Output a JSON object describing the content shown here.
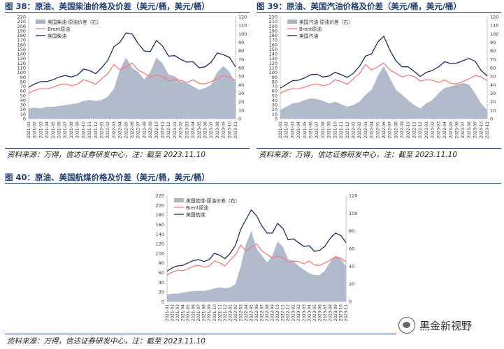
{
  "figures": {
    "fig38": {
      "title": "图 38：原油、美国柴油价格及价差（美元/桶，美元/桶）",
      "source": "资料来源：万得，信达证券研发中心，注：截至 2023.11.10"
    },
    "fig39": {
      "title": "图 39：原油、美国汽油价格及价差（美元/桶，美元/桶）",
      "source": "资料来源：万得，信达证券研发中心，注：截至 2023.11.10"
    },
    "fig40": {
      "title": "图 40：原油、美国航煤价格及价差（美元/桶，美元/桶）",
      "source": "资料来源：万得，信达证券研发中心，注：截至 2023.11.10"
    }
  },
  "watermark": {
    "text": "黑金新视野",
    "icon": "wechat-icon"
  },
  "colors": {
    "spread": "#a9b4c7",
    "brent": "#f47c7c",
    "product": "#1a2f5f",
    "title": "#1f3d6e"
  },
  "chart_data": [
    {
      "type": "area",
      "id": "fig38",
      "categories": [
        "2021-01",
        "2021-02",
        "2021-03",
        "2021-04",
        "2021-05",
        "2021-06",
        "2021-07",
        "2021-08",
        "2021-09",
        "2021-10",
        "2021-11",
        "2021-12",
        "2022-01",
        "2022-02",
        "2022-03",
        "2022-04",
        "2022-05",
        "2022-06",
        "2022-07",
        "2022-08",
        "2022-09",
        "2022-10",
        "2022-11",
        "2022-12",
        "2023-01",
        "2023-02",
        "2023-03",
        "2023-04",
        "2023-05",
        "2023-06",
        "2023-07",
        "2023-08",
        "2023-09",
        "2023-10",
        "2023-11"
      ],
      "y_left": {
        "min": 0,
        "max": 220,
        "step": 10
      },
      "y_right": {
        "min": 0,
        "max": 120,
        "step": 10
      },
      "legend_position": "top-left",
      "series": [
        {
          "name": "美国柴油-原油价差（右）",
          "axis": "right",
          "kind": "area",
          "values": [
            12,
            13,
            12,
            14,
            14,
            15,
            16,
            17,
            18,
            21,
            22,
            21,
            22,
            26,
            35,
            58,
            72,
            60,
            55,
            46,
            55,
            72,
            65,
            52,
            50,
            44,
            42,
            38,
            34,
            36,
            40,
            55,
            62,
            55,
            42
          ]
        },
        {
          "name": "Brent原油",
          "axis": "left",
          "kind": "line",
          "values": [
            55,
            61,
            65,
            64,
            68,
            73,
            75,
            71,
            74,
            84,
            80,
            74,
            86,
            97,
            117,
            105,
            112,
            120,
            105,
            98,
            90,
            94,
            91,
            81,
            84,
            83,
            78,
            84,
            76,
            75,
            80,
            86,
            93,
            90,
            82
          ]
        },
        {
          "name": "美国柴油",
          "axis": "left",
          "kind": "line",
          "values": [
            68,
            75,
            80,
            80,
            84,
            90,
            93,
            90,
            94,
            107,
            104,
            97,
            110,
            126,
            155,
            165,
            185,
            183,
            162,
            146,
            145,
            169,
            157,
            135,
            136,
            128,
            122,
            123,
            110,
            112,
            122,
            142,
            138,
            132,
            112
          ]
        }
      ]
    },
    {
      "type": "area",
      "id": "fig39",
      "categories": [
        "2021-01",
        "2021-02",
        "2021-03",
        "2021-04",
        "2021-05",
        "2021-06",
        "2021-07",
        "2021-08",
        "2021-09",
        "2021-10",
        "2021-11",
        "2021-12",
        "2022-01",
        "2022-02",
        "2022-03",
        "2022-04",
        "2022-05",
        "2022-06",
        "2022-07",
        "2022-08",
        "2022-09",
        "2022-10",
        "2022-11",
        "2022-12",
        "2023-01",
        "2023-02",
        "2023-03",
        "2023-04",
        "2023-05",
        "2023-06",
        "2023-07",
        "2023-08",
        "2023-09",
        "2023-10",
        "2023-11"
      ],
      "y_left": {
        "min": 0,
        "max": 220,
        "step": 10
      },
      "y_right": {
        "min": 0,
        "max": 120,
        "step": 10
      },
      "legend_position": "top-left",
      "series": [
        {
          "name": "美国汽油-原油价差（右）",
          "axis": "right",
          "kind": "area",
          "values": [
            10,
            14,
            18,
            19,
            22,
            24,
            23,
            21,
            18,
            20,
            17,
            14,
            16,
            20,
            28,
            34,
            50,
            62,
            48,
            34,
            28,
            22,
            16,
            12,
            18,
            22,
            30,
            36,
            38,
            40,
            42,
            40,
            30,
            18,
            10
          ]
        },
        {
          "name": "Brent原油",
          "axis": "left",
          "kind": "line",
          "values": [
            55,
            61,
            65,
            64,
            68,
            73,
            75,
            71,
            74,
            84,
            80,
            74,
            86,
            97,
            117,
            105,
            112,
            120,
            105,
            98,
            90,
            94,
            91,
            81,
            84,
            83,
            78,
            84,
            76,
            75,
            80,
            86,
            93,
            90,
            82
          ]
        },
        {
          "name": "美国汽油",
          "axis": "left",
          "kind": "line",
          "values": [
            66,
            74,
            82,
            83,
            88,
            95,
            96,
            90,
            92,
            100,
            95,
            89,
            98,
            113,
            135,
            140,
            165,
            178,
            148,
            125,
            112,
            112,
            102,
            91,
            100,
            104,
            112,
            123,
            119,
            120,
            125,
            130,
            124,
            104,
            92
          ]
        }
      ]
    },
    {
      "type": "area",
      "id": "fig40",
      "categories": [
        "2021-01",
        "2021-02",
        "2021-03",
        "2021-04",
        "2021-05",
        "2021-06",
        "2021-07",
        "2021-08",
        "2021-09",
        "2021-10",
        "2021-11",
        "2021-12",
        "2022-01",
        "2022-02",
        "2022-03",
        "2022-04",
        "2022-05",
        "2022-06",
        "2022-07",
        "2022-08",
        "2022-09",
        "2022-10",
        "2022-11",
        "2022-12",
        "2023-01",
        "2023-02",
        "2023-03",
        "2023-04",
        "2023-05",
        "2023-06",
        "2023-07",
        "2023-08",
        "2023-09",
        "2023-10",
        "2023-11"
      ],
      "y_left": {
        "min": 0,
        "max": 220,
        "step": 20
      },
      "y_right": {
        "min": 0,
        "max": 120,
        "step": 20
      },
      "legend_position": "top-left",
      "series": [
        {
          "name": "美国航煤-原油价差（右）",
          "axis": "right",
          "kind": "area",
          "values": [
            8,
            9,
            9,
            10,
            11,
            12,
            12,
            12,
            13,
            15,
            16,
            15,
            16,
            20,
            40,
            65,
            80,
            60,
            52,
            44,
            52,
            68,
            62,
            48,
            46,
            40,
            36,
            32,
            30,
            30,
            35,
            45,
            52,
            48,
            40
          ]
        },
        {
          "name": "Brent原油",
          "axis": "left",
          "kind": "line",
          "values": [
            55,
            61,
            65,
            64,
            68,
            73,
            75,
            71,
            74,
            84,
            80,
            74,
            86,
            97,
            117,
            105,
            112,
            120,
            105,
            98,
            90,
            94,
            91,
            81,
            84,
            83,
            78,
            84,
            76,
            75,
            80,
            86,
            93,
            90,
            82
          ]
        },
        {
          "name": "美国航煤",
          "axis": "left",
          "kind": "line",
          "values": [
            63,
            70,
            74,
            75,
            80,
            85,
            87,
            83,
            87,
            100,
            96,
            89,
            100,
            117,
            150,
            170,
            190,
            178,
            157,
            142,
            142,
            162,
            152,
            128,
            130,
            122,
            114,
            116,
            104,
            106,
            115,
            131,
            142,
            137,
            122
          ]
        }
      ]
    }
  ]
}
